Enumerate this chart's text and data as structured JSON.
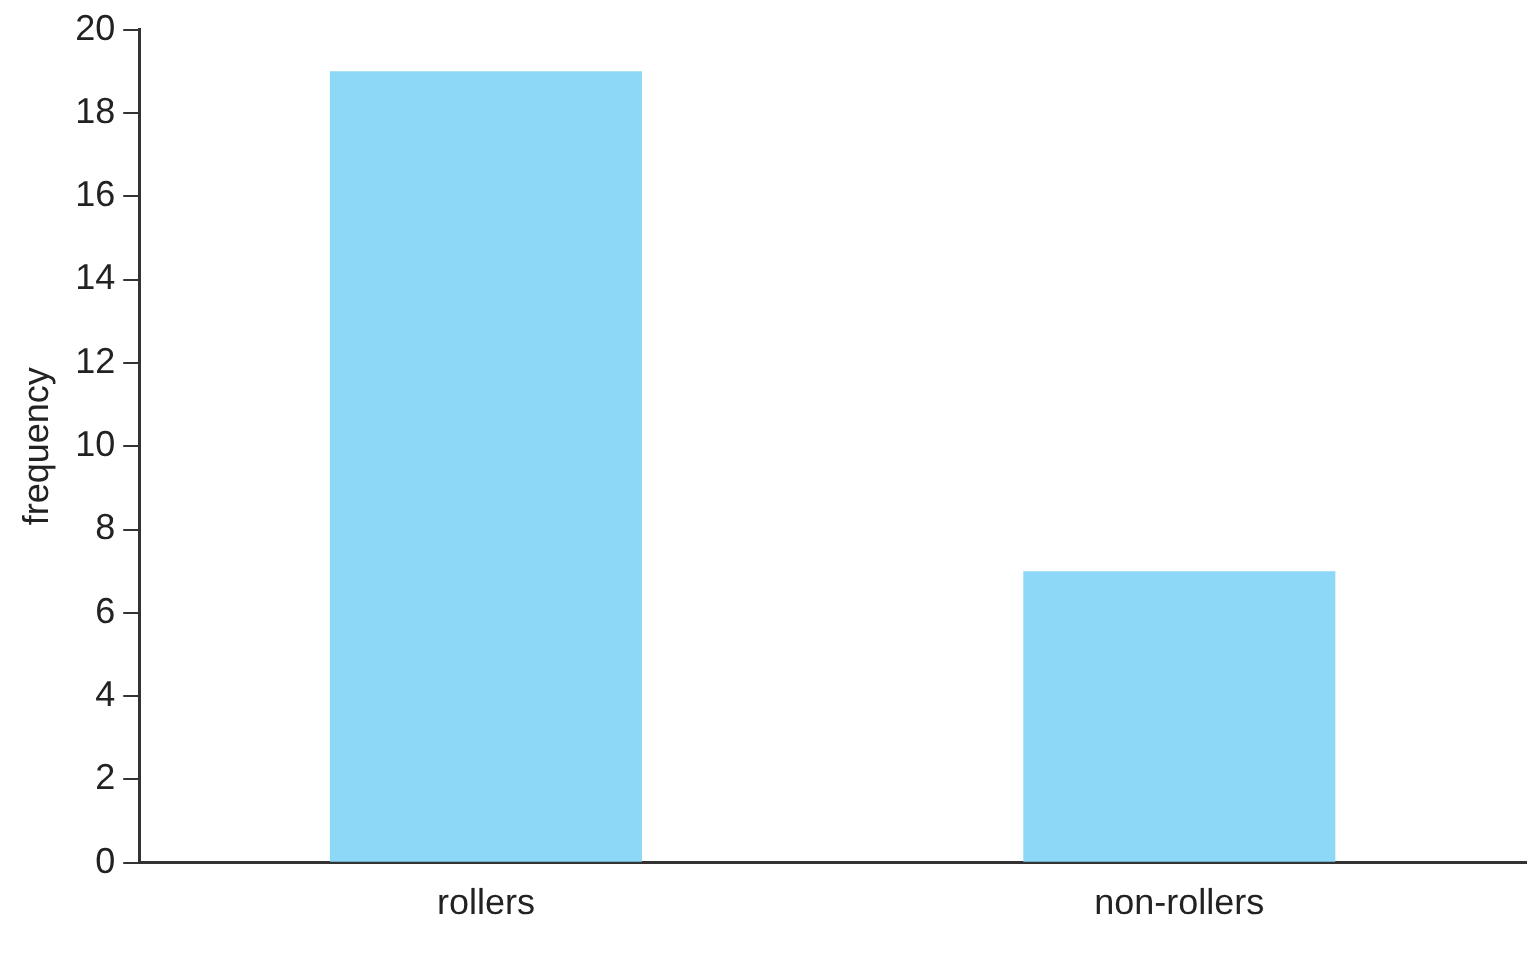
{
  "chart_data": {
    "type": "bar",
    "ylabel": "frequency",
    "categories": [
      "rollers",
      "non-rollers"
    ],
    "values": [
      19,
      7
    ],
    "color": "#8dd7f7",
    "ylim": [
      0,
      20
    ],
    "yticks": [
      0,
      2,
      4,
      6,
      8,
      10,
      12,
      14,
      16,
      18,
      20
    ],
    "grid": false,
    "legend": false
  }
}
